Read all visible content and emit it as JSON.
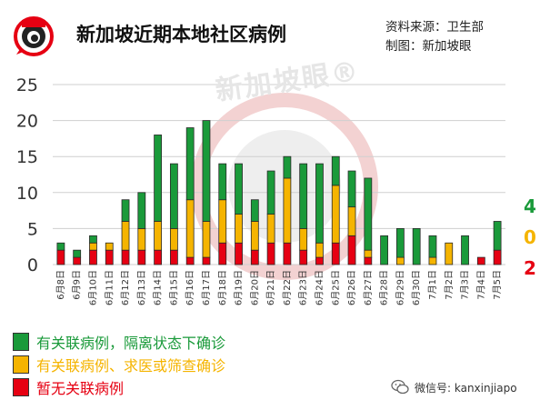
{
  "header": {
    "title": "新加坡近期本地社区病例",
    "source": "资料来源：卫生部",
    "maker": "制图：新加坡眼",
    "logo_text": "新加坡眼",
    "watermark": "新加坡眼®"
  },
  "today": {
    "linked_quarantine": "4",
    "linked_other": "0",
    "unlinked": "2"
  },
  "legend": [
    {
      "label": "有关联病例，隔离状态下确诊",
      "color": "#1a9a3a"
    },
    {
      "label": "有关联病例、求医或筛查确诊",
      "color": "#f5b400"
    },
    {
      "label": "暂无关联病例",
      "color": "#e60012"
    }
  ],
  "footer": {
    "wechat": "微信号: kanxinjiapo"
  },
  "colors": {
    "green": "#1a9a3a",
    "yellow": "#f5b400",
    "red": "#e60012"
  },
  "chart_data": {
    "type": "bar",
    "stacked": true,
    "ylim": [
      0,
      25
    ],
    "yticks": [
      0,
      5,
      10,
      15,
      20,
      25
    ],
    "grid": true,
    "categories": [
      "6月8日",
      "6月9日",
      "6月10日",
      "6月11日",
      "6月12日",
      "6月13日",
      "6月14日",
      "6月15日",
      "6月16日",
      "6月17日",
      "6月18日",
      "6月19日",
      "6月20日",
      "6月21日",
      "6月22日",
      "6月23日",
      "6月24日",
      "6月25日",
      "6月26日",
      "6月27日",
      "6月28日",
      "6月29日",
      "6月30日",
      "7月1日",
      "7月2日",
      "7月3日",
      "7月4日",
      "7月5日"
    ],
    "series": [
      {
        "name": "暂无关联病例",
        "color": "#e60012",
        "values": [
          2,
          1,
          2,
          2,
          2,
          2,
          2,
          2,
          1,
          1,
          3,
          3,
          2,
          3,
          3,
          2,
          1,
          3,
          4,
          1,
          0,
          0,
          0,
          0,
          0,
          0,
          1,
          2
        ]
      },
      {
        "name": "有关联病例、求医或筛查确诊",
        "color": "#f5b400",
        "values": [
          0,
          0,
          1,
          1,
          4,
          3,
          4,
          3,
          8,
          5,
          6,
          4,
          4,
          4,
          9,
          3,
          2,
          8,
          4,
          1,
          0,
          1,
          0,
          1,
          3,
          0,
          0,
          0
        ]
      },
      {
        "name": "有关联病例，隔离状态下确诊",
        "color": "#1a9a3a",
        "values": [
          1,
          1,
          1,
          0,
          3,
          5,
          12,
          9,
          10,
          14,
          5,
          7,
          3,
          6,
          3,
          9,
          11,
          4,
          5,
          10,
          4,
          4,
          5,
          3,
          0,
          4,
          0,
          4
        ]
      }
    ]
  }
}
